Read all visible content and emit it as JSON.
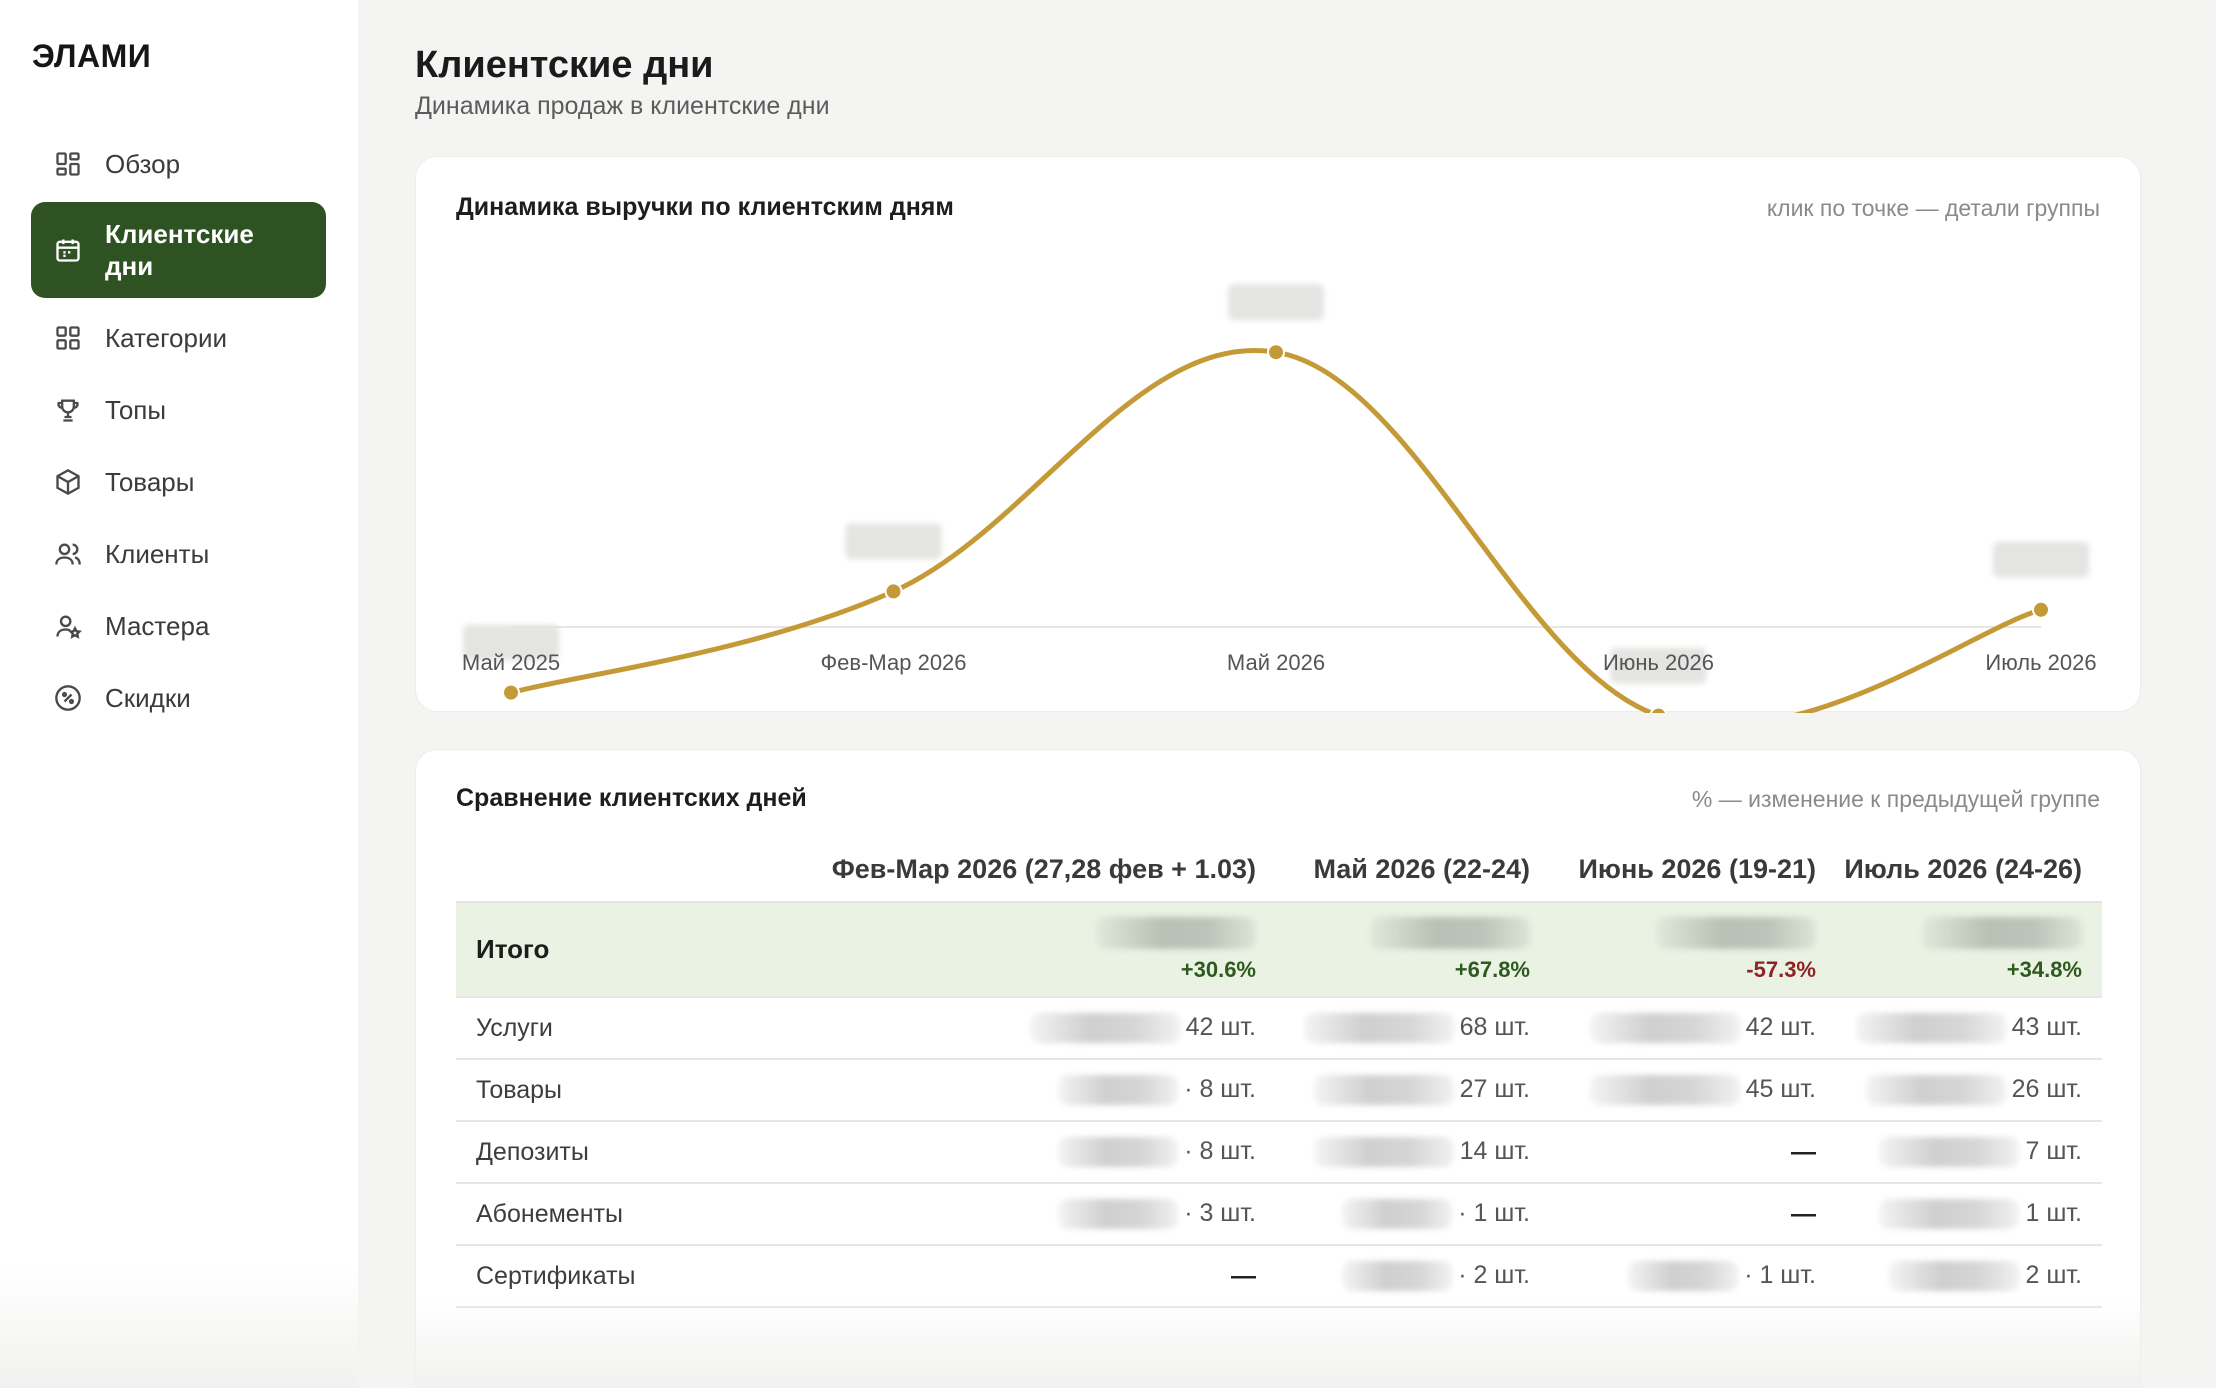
{
  "app": {
    "logo": "ЭЛАМИ"
  },
  "sidebar": {
    "items": [
      {
        "label": "Обзор",
        "icon": "dashboard-icon"
      },
      {
        "label": "Клиентские дни",
        "icon": "calendar-icon",
        "active": true
      },
      {
        "label": "Категории",
        "icon": "grid-icon"
      },
      {
        "label": "Топы",
        "icon": "trophy-icon"
      },
      {
        "label": "Товары",
        "icon": "box-icon"
      },
      {
        "label": "Клиенты",
        "icon": "users-icon"
      },
      {
        "label": "Мастера",
        "icon": "user-star-icon"
      },
      {
        "label": "Скидки",
        "icon": "percent-icon"
      }
    ]
  },
  "page": {
    "title": "Клиентские дни",
    "subtitle": "Динамика продаж в клиентские дни"
  },
  "chart_card": {
    "title": "Динамика выручки по клиентским дням",
    "hint": "клик по точке — детали группы"
  },
  "chart_data": {
    "type": "line",
    "categories": [
      "Май 2025",
      "Фев-Мар 2026",
      "Май 2026",
      "Июнь 2026",
      "Июль 2026"
    ],
    "values": [
      0.14,
      0.36,
      0.88,
      0.09,
      0.32
    ],
    "value_labels_hidden": true,
    "ylim": [
      0,
      1
    ],
    "grid": false,
    "smooth": true,
    "color": "#c49a36"
  },
  "table_card": {
    "title": "Сравнение клиентских дней",
    "hint": "% — изменение к предыдущей группе",
    "columns": [
      "Фев-Мар 2026 (27,28 фев + 1.03)",
      "Май 2026 (22-24)",
      "Июнь 2026 (19-21)",
      "Июль 2026 (24-26)"
    ],
    "total": {
      "label": "Итого",
      "pct": [
        "+30.6%",
        "+67.8%",
        "-57.3%",
        "+34.8%"
      ],
      "dir": [
        "up",
        "up",
        "down",
        "up"
      ]
    },
    "rows": [
      {
        "label": "Услуги",
        "cells": [
          "42 шт.",
          "68 шт.",
          "42 шт.",
          "43 шт."
        ]
      },
      {
        "label": "Товары",
        "cells": [
          "· 8 шт.",
          "27 шт.",
          "45 шт.",
          "26 шт."
        ]
      },
      {
        "label": "Депозиты",
        "cells": [
          "· 8 шт.",
          "14 шт.",
          "—",
          "7 шт."
        ]
      },
      {
        "label": "Абонементы",
        "cells": [
          "· 3 шт.",
          "· 1 шт.",
          "—",
          "1 шт."
        ]
      },
      {
        "label": "Сертификаты",
        "cells": [
          "—",
          "· 2 шт.",
          "· 1 шт.",
          "2 шт."
        ]
      }
    ]
  },
  "colors": {
    "accent": "#2f5223",
    "line": "#c49a36",
    "positive": "#2f5a1f",
    "negative": "#8d2323"
  }
}
